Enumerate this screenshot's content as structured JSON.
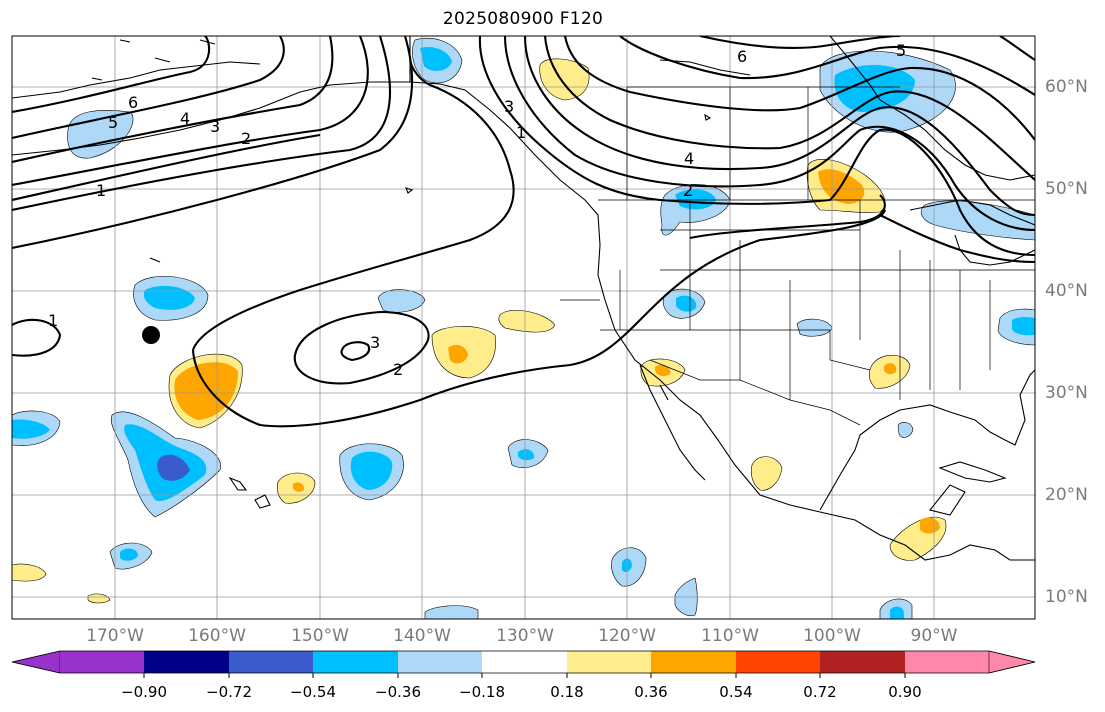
{
  "title": "2025080900 F120",
  "lat_labels": [
    "60°N",
    "50°N",
    "40°N",
    "30°N",
    "20°N",
    "10°N"
  ],
  "lon_labels": [
    "170°W",
    "160°W",
    "150°W",
    "140°W",
    "130°W",
    "120°W",
    "110°W",
    "100°W",
    "90°W"
  ],
  "colorbar": {
    "colors": [
      "#9932cc",
      "#00008b",
      "#3a5bcc",
      "#00bfff",
      "#add8f7",
      "#ffffff",
      "#ffec8b",
      "#ffa500",
      "#ff4500",
      "#b22222",
      "#ff88aa"
    ],
    "labels": [
      "−0.90",
      "−0.72",
      "−0.54",
      "−0.36",
      "−0.18",
      "0.18",
      "0.36",
      "0.54",
      "0.72",
      "0.90"
    ]
  },
  "contour_labels": [
    "6",
    "5",
    "4",
    "3",
    "2",
    "1",
    "1",
    "3",
    "2",
    "3",
    "1",
    "6",
    "5",
    "4",
    "2"
  ]
}
